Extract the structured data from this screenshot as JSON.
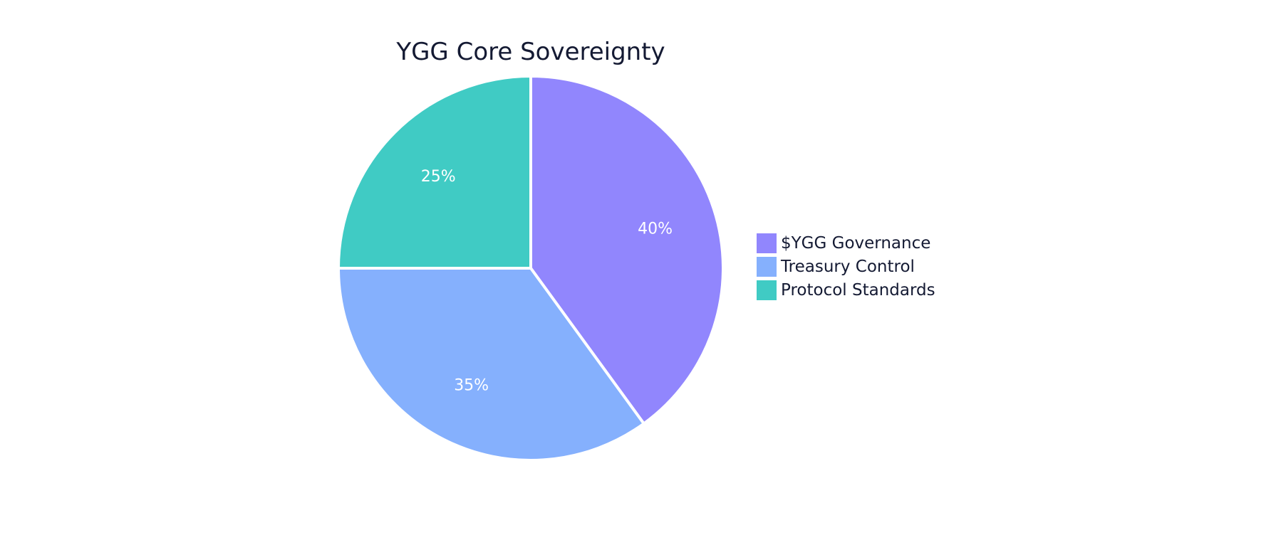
{
  "chart_data": {
    "type": "pie",
    "title": "YGG Core Sovereignty",
    "categories": [
      "$YGG Governance",
      "Treasury Control",
      "Protocol Standards"
    ],
    "values": [
      40,
      35,
      25
    ],
    "colors": [
      "#9186fd",
      "#85b0fd",
      "#40cbc4"
    ],
    "value_labels": [
      "40%",
      "35%",
      "25%"
    ],
    "legend_position": "right",
    "start": "12 o'clock",
    "direction": "clockwise"
  }
}
